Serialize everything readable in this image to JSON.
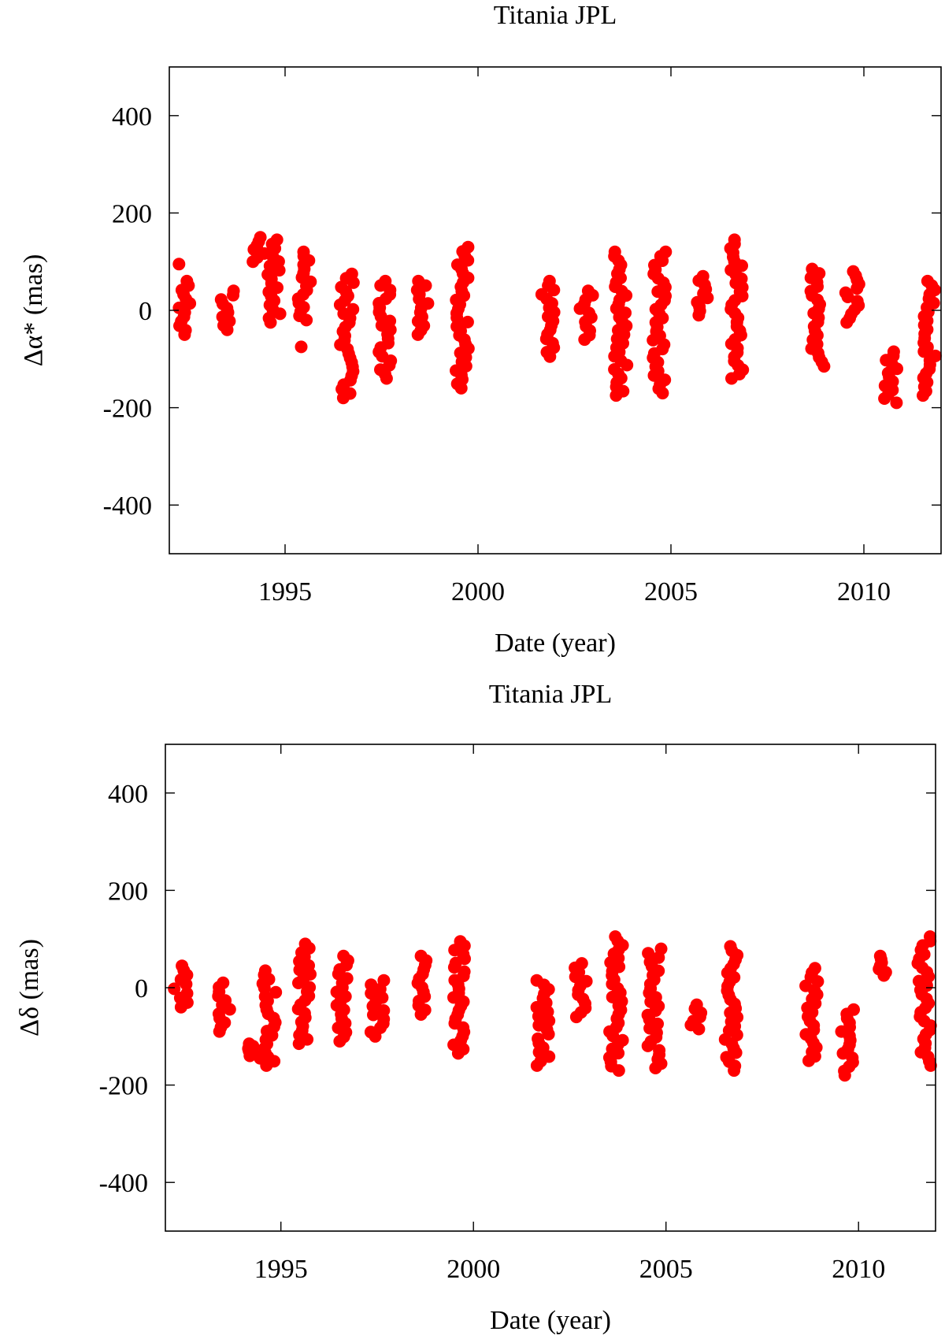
{
  "chart_data": [
    {
      "type": "scatter",
      "title": "Titania JPL",
      "xlabel": "Date (year)",
      "ylabel": "Δα* (mas)",
      "xlim": [
        1992.0,
        2012.0
      ],
      "ylim": [
        -500,
        500
      ],
      "xticks": [
        1995,
        2000,
        2005,
        2010
      ],
      "yticks": [
        -400,
        -200,
        0,
        200,
        400
      ],
      "grid": false,
      "marker_color": "#ff0000",
      "series": [
        {
          "groups": [
            {
              "x": 1992.4,
              "ymin": -50,
              "ymax": 60,
              "extra": [
                95
              ]
            },
            {
              "x": 1993.5,
              "ymin": -40,
              "ymax": 40,
              "extra": []
            },
            {
              "x": 1994.3,
              "ymin": 100,
              "ymax": 150,
              "extra": []
            },
            {
              "x": 1994.7,
              "ymin": -25,
              "ymax": 145,
              "extra": []
            },
            {
              "x": 1995.5,
              "ymin": -20,
              "ymax": 120,
              "extra": [
                -75
              ]
            },
            {
              "x": 1996.6,
              "ymin": -180,
              "ymax": 75,
              "extra": []
            },
            {
              "x": 1997.6,
              "ymin": -140,
              "ymax": 60,
              "extra": []
            },
            {
              "x": 1998.6,
              "ymin": -50,
              "ymax": 60,
              "extra": []
            },
            {
              "x": 1999.6,
              "ymin": -160,
              "ymax": 130,
              "extra": []
            },
            {
              "x": 2001.8,
              "ymin": -95,
              "ymax": 60,
              "extra": []
            },
            {
              "x": 2002.8,
              "ymin": -60,
              "ymax": 40,
              "extra": []
            },
            {
              "x": 2003.7,
              "ymin": -175,
              "ymax": 120,
              "extra": []
            },
            {
              "x": 2004.7,
              "ymin": -170,
              "ymax": 120,
              "extra": []
            },
            {
              "x": 2005.8,
              "ymin": -10,
              "ymax": 70,
              "extra": []
            },
            {
              "x": 2006.7,
              "ymin": -140,
              "ymax": 145,
              "extra": []
            },
            {
              "x": 2008.8,
              "ymin": -115,
              "ymax": 85,
              "extra": []
            },
            {
              "x": 2009.7,
              "ymin": -25,
              "ymax": 80,
              "extra": []
            },
            {
              "x": 2010.7,
              "ymin": -190,
              "ymax": -85,
              "extra": []
            },
            {
              "x": 2011.7,
              "ymin": -175,
              "ymax": 60,
              "extra": []
            }
          ]
        }
      ]
    },
    {
      "type": "scatter",
      "title": "Titania JPL",
      "xlabel": "Date (year)",
      "ylabel": "Δδ (mas)",
      "xlim": [
        1992.0,
        2012.0
      ],
      "ylim": [
        -500,
        500
      ],
      "xticks": [
        1995,
        2000,
        2005,
        2010
      ],
      "yticks": [
        -400,
        -200,
        0,
        200,
        400
      ],
      "grid": false,
      "marker_color": "#ff0000",
      "series": [
        {
          "groups": [
            {
              "x": 1992.4,
              "ymin": -40,
              "ymax": 45,
              "extra": []
            },
            {
              "x": 1993.5,
              "ymin": -90,
              "ymax": 10,
              "extra": []
            },
            {
              "x": 1994.3,
              "ymin": -145,
              "ymax": -115,
              "extra": []
            },
            {
              "x": 1994.7,
              "ymin": -160,
              "ymax": 35,
              "extra": []
            },
            {
              "x": 1995.6,
              "ymin": -115,
              "ymax": 90,
              "extra": []
            },
            {
              "x": 1996.6,
              "ymin": -110,
              "ymax": 65,
              "extra": []
            },
            {
              "x": 1997.5,
              "ymin": -100,
              "ymax": 15,
              "extra": []
            },
            {
              "x": 1998.6,
              "ymin": -55,
              "ymax": 65,
              "extra": []
            },
            {
              "x": 1999.6,
              "ymin": -135,
              "ymax": 95,
              "extra": []
            },
            {
              "x": 2001.8,
              "ymin": -160,
              "ymax": 15,
              "extra": []
            },
            {
              "x": 2002.8,
              "ymin": -60,
              "ymax": 50,
              "extra": []
            },
            {
              "x": 2003.7,
              "ymin": -170,
              "ymax": 105,
              "extra": []
            },
            {
              "x": 2004.7,
              "ymin": -165,
              "ymax": 80,
              "extra": []
            },
            {
              "x": 2005.8,
              "ymin": -85,
              "ymax": -35,
              "extra": []
            },
            {
              "x": 2006.7,
              "ymin": -170,
              "ymax": 85,
              "extra": []
            },
            {
              "x": 2008.8,
              "ymin": -150,
              "ymax": 40,
              "extra": []
            },
            {
              "x": 2009.7,
              "ymin": -180,
              "ymax": -45,
              "extra": []
            },
            {
              "x": 2010.7,
              "ymin": 25,
              "ymax": 65,
              "extra": []
            },
            {
              "x": 2011.7,
              "ymin": -160,
              "ymax": 105,
              "extra": []
            }
          ]
        }
      ]
    }
  ]
}
